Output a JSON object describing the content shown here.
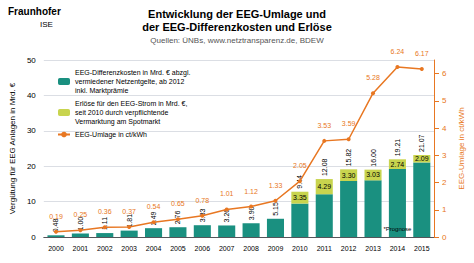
{
  "chart_data": {
    "type": "bar",
    "title": "Entwicklung der EEG-Umlage und\nder EEG-Differenzkosten und Erlöse",
    "subtitle": "Quellen: ÜNBs, www.netztransparenz.de, BDEW",
    "ylabel": "Vergütung für EEG Anlagen in Mrd. €",
    "y2label": "EEG-Umlage in ct/kWh",
    "categories": [
      2000,
      2001,
      2002,
      2003,
      2004,
      2005,
      2006,
      2007,
      2008,
      2009,
      2010,
      2011,
      2012,
      2013,
      2014,
      2015
    ],
    "series": [
      {
        "name": "EEG-Differenzkosten in Mrd. € abzgl.\nvermiedener Netzentgelte, ab 2012\ninkl. Marktprämie",
        "type": "bar",
        "color": "#1a9080",
        "values": [
          0.48,
          1.0,
          1.11,
          1.81,
          2.49,
          2.76,
          3.33,
          3.26,
          3.9,
          5.15,
          9.44,
          12.08,
          15.82,
          16.0,
          19.21,
          21.07
        ],
        "value_labels": [
          "0.48",
          "1.00",
          "1.11",
          "1.81",
          "2.49",
          "2.76",
          "3.33",
          "3.26",
          "3.90",
          "5.15",
          "9.44",
          "12.08",
          "15.82",
          "16.00",
          "19.21",
          "21.07"
        ]
      },
      {
        "name": "Erlöse für den EEG-Strom in Mrd. €,\nseit 2010 durch verpflichtende\nVermarktung am Spotmarkt",
        "type": "bar",
        "color": "#c8d44e",
        "values": [
          0.0,
          0.0,
          0.0,
          0.0,
          0.0,
          0.0,
          0.0,
          0.0,
          0.0,
          0.0,
          3.35,
          4.29,
          3.3,
          3.03,
          2.74,
          2.09
        ],
        "value_labels": [
          null,
          null,
          null,
          null,
          null,
          null,
          null,
          null,
          null,
          null,
          "3.35",
          "4.29",
          "3.30",
          "3.03",
          "2.74",
          "2.09"
        ]
      },
      {
        "name": "EEG-Umlage in ct/kWh",
        "type": "line",
        "axis": "y2",
        "color": "#e87722",
        "marker": "circle",
        "values": [
          0.19,
          0.25,
          0.36,
          0.37,
          0.54,
          0.65,
          0.78,
          1.01,
          1.12,
          1.33,
          2.05,
          3.53,
          3.59,
          5.28,
          6.24,
          6.17
        ]
      }
    ],
    "stacked": true,
    "data_labels": true,
    "ylim": [
      0,
      50
    ],
    "yticks": [
      0,
      10,
      20,
      30,
      40,
      50
    ],
    "y2lim": [
      0,
      6.5
    ],
    "y2ticks": [
      0,
      1,
      2,
      3,
      4,
      5,
      6
    ],
    "grid": true,
    "legend": "upper left",
    "annotations": [
      {
        "text": "*Prognose",
        "x": 2014,
        "y": 1.0
      },
      {
        "text": "Fraunhofer"
      },
      {
        "text": "ISE"
      }
    ]
  }
}
